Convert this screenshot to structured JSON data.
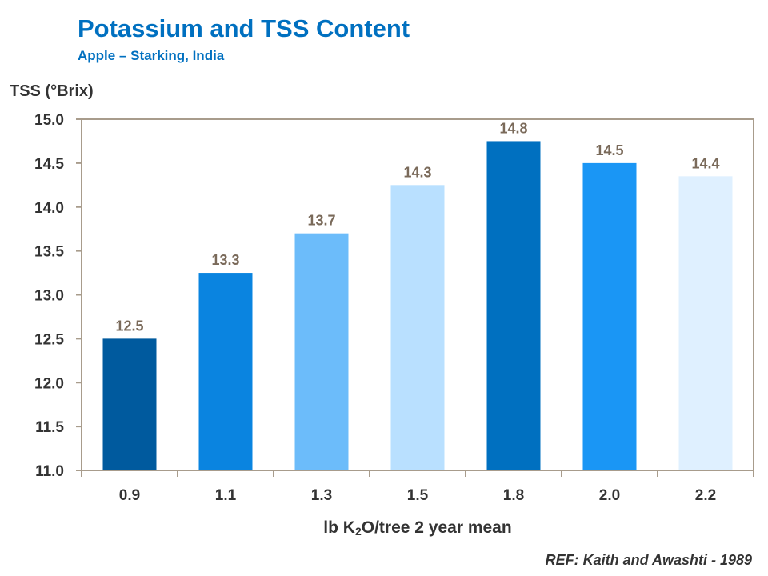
{
  "chart_data": {
    "type": "bar",
    "title": "Potassium and TSS Content",
    "subtitle": "Apple – Starking, India",
    "ylabel": "TSS (°Brix)",
    "xlabel_parts": {
      "pre": "lb K",
      "sub": "2",
      "post": "O/tree 2 year mean"
    },
    "categories": [
      "0.9",
      "1.1",
      "1.3",
      "1.5",
      "1.8",
      "2.0",
      "2.2"
    ],
    "values": [
      12.5,
      13.25,
      13.7,
      14.25,
      14.75,
      14.5,
      14.35
    ],
    "data_labels": [
      "12.5",
      "13.3",
      "13.7",
      "14.3",
      "14.8",
      "14.5",
      "14.4"
    ],
    "ylim": [
      11.0,
      15.0
    ],
    "yticks": [
      "11.0",
      "11.5",
      "12.0",
      "12.5",
      "13.0",
      "13.5",
      "14.0",
      "14.5",
      "15.0"
    ],
    "bar_colors": [
      "#005a9e",
      "#0a84e0",
      "#6cbcfa",
      "#b9e0ff",
      "#0070c0",
      "#1a96f5",
      "#dff0ff"
    ],
    "grid": false,
    "reference": "REF:  Kaith and Awashti - 1989"
  }
}
